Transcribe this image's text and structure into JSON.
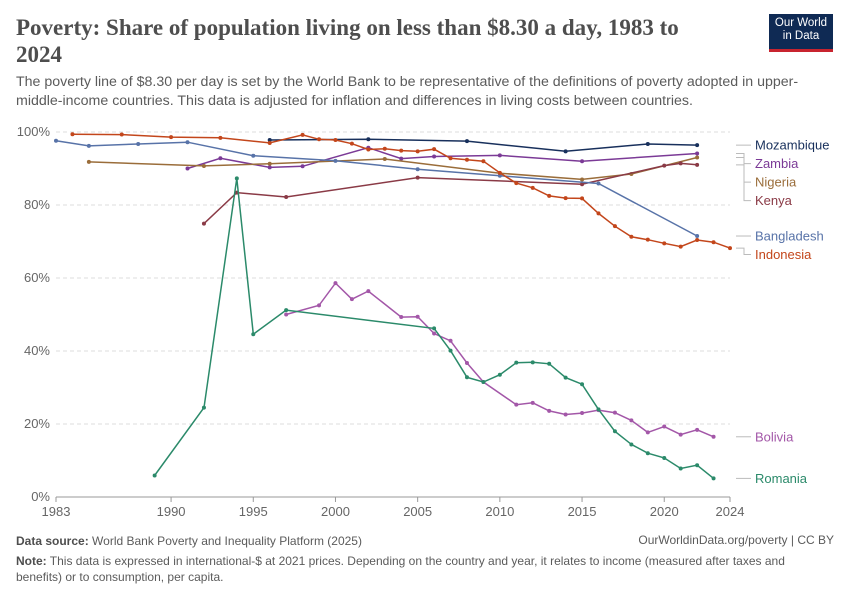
{
  "header": {
    "title": "Poverty: Share of population living on less than $8.30 a day, 1983 to 2024",
    "subtitle": "The poverty line of $8.30 per day is set by the World Bank to be representative of the definitions of poverty adopted in upper-middle-income countries. This data is adjusted for inflation and differences in living costs between countries.",
    "logo_line1": "Our World",
    "logo_line2": "in Data",
    "logo_color": "#0f2a54",
    "logo_accent": "#c8242f"
  },
  "footer": {
    "source_label": "Data source:",
    "source_text": "World Bank Poverty and Inequality Platform (2025)",
    "url_text": "OurWorldinData.org/poverty | CC BY",
    "note_label": "Note:",
    "note_text": "This data is expressed in international-$ at 2021 prices. Depending on the country and year, it relates to income (measured after taxes and benefits) or to consumption, per capita."
  },
  "chart_data": {
    "type": "line",
    "xlim": [
      1983,
      2024
    ],
    "ylim": [
      0,
      100
    ],
    "x_ticks": [
      1983,
      1990,
      1995,
      2000,
      2005,
      2010,
      2015,
      2020,
      2024
    ],
    "y_ticks": [
      0,
      20,
      40,
      60,
      80,
      100
    ],
    "y_tick_labels": [
      "0%",
      "20%",
      "40%",
      "60%",
      "80%",
      "100%"
    ],
    "grid": "horizontal-dashed",
    "legend": "right-end-labels",
    "series": [
      {
        "name": "Mozambique",
        "color": "#18305c",
        "points": [
          [
            1996,
            97.8
          ],
          [
            2002,
            98.0
          ],
          [
            2008,
            97.5
          ],
          [
            2014,
            94.7
          ],
          [
            2019,
            96.7
          ],
          [
            2022,
            96.4
          ]
        ]
      },
      {
        "name": "Zambia",
        "color": "#7b3a96",
        "points": [
          [
            1991,
            90.0
          ],
          [
            1993,
            92.8
          ],
          [
            1996,
            90.3
          ],
          [
            1998,
            90.6
          ],
          [
            2002,
            95.7
          ],
          [
            2004,
            92.7
          ],
          [
            2006,
            93.3
          ],
          [
            2010,
            93.6
          ],
          [
            2015,
            92.0
          ],
          [
            2022,
            94.1
          ]
        ]
      },
      {
        "name": "Nigeria",
        "color": "#9a6d3a",
        "points": [
          [
            1985,
            91.8
          ],
          [
            1992,
            90.7
          ],
          [
            1996,
            91.3
          ],
          [
            2003,
            92.6
          ],
          [
            2010,
            88.7
          ],
          [
            2015,
            87.0
          ],
          [
            2018,
            88.5
          ],
          [
            2022,
            93.0
          ]
        ]
      },
      {
        "name": "Kenya",
        "color": "#8a3a46",
        "points": [
          [
            1992,
            74.9
          ],
          [
            1994,
            83.4
          ],
          [
            1997,
            82.2
          ],
          [
            2005,
            87.5
          ],
          [
            2015,
            85.7
          ],
          [
            2020,
            90.8
          ],
          [
            2021,
            91.4
          ],
          [
            2022,
            91.0
          ]
        ]
      },
      {
        "name": "Bangladesh",
        "color": "#5873a8",
        "points": [
          [
            1983,
            97.6
          ],
          [
            1985,
            96.2
          ],
          [
            1988,
            96.7
          ],
          [
            1991,
            97.2
          ],
          [
            1995,
            93.5
          ],
          [
            2000,
            92.1
          ],
          [
            2005,
            89.8
          ],
          [
            2010,
            88.0
          ],
          [
            2016,
            85.9
          ],
          [
            2022,
            71.5
          ]
        ]
      },
      {
        "name": "Indonesia",
        "color": "#c3461b",
        "points": [
          [
            1984,
            99.4
          ],
          [
            1987,
            99.3
          ],
          [
            1990,
            98.6
          ],
          [
            1993,
            98.4
          ],
          [
            1996,
            97.0
          ],
          [
            1998,
            99.2
          ],
          [
            1999,
            98.0
          ],
          [
            2000,
            97.8
          ],
          [
            2001,
            96.8
          ],
          [
            2002,
            95.2
          ],
          [
            2003,
            95.4
          ],
          [
            2004,
            94.9
          ],
          [
            2005,
            94.7
          ],
          [
            2006,
            95.3
          ],
          [
            2007,
            92.8
          ],
          [
            2008,
            92.4
          ],
          [
            2009,
            92.0
          ],
          [
            2010,
            88.8
          ],
          [
            2011,
            86.0
          ],
          [
            2012,
            84.7
          ],
          [
            2013,
            82.5
          ],
          [
            2014,
            81.9
          ],
          [
            2015,
            81.8
          ],
          [
            2016,
            77.7
          ],
          [
            2017,
            74.2
          ],
          [
            2018,
            71.3
          ],
          [
            2019,
            70.5
          ],
          [
            2020,
            69.5
          ],
          [
            2021,
            68.6
          ],
          [
            2022,
            70.4
          ],
          [
            2023,
            69.8
          ],
          [
            2024,
            68.2
          ]
        ]
      },
      {
        "name": "Bolivia",
        "color": "#a357a8",
        "points": [
          [
            1997,
            50.0
          ],
          [
            1999,
            52.5
          ],
          [
            2000,
            58.6
          ],
          [
            2001,
            54.2
          ],
          [
            2002,
            56.4
          ],
          [
            2004,
            49.3
          ],
          [
            2005,
            49.4
          ],
          [
            2006,
            44.8
          ],
          [
            2007,
            42.8
          ],
          [
            2008,
            36.7
          ],
          [
            2009,
            31.5
          ],
          [
            2011,
            25.3
          ],
          [
            2012,
            25.8
          ],
          [
            2013,
            23.6
          ],
          [
            2014,
            22.6
          ],
          [
            2015,
            23.0
          ],
          [
            2016,
            23.8
          ],
          [
            2017,
            23.1
          ],
          [
            2018,
            21.0
          ],
          [
            2019,
            17.7
          ],
          [
            2020,
            19.3
          ],
          [
            2021,
            17.1
          ],
          [
            2022,
            18.4
          ],
          [
            2023,
            16.5
          ]
        ]
      },
      {
        "name": "Romania",
        "color": "#2b8a6a",
        "points": [
          [
            1989,
            5.9
          ],
          [
            1992,
            24.5
          ],
          [
            1994,
            87.3
          ],
          [
            1995,
            44.6
          ],
          [
            1997,
            51.2
          ],
          [
            2006,
            46.2
          ],
          [
            2007,
            40.1
          ],
          [
            2008,
            32.8
          ],
          [
            2009,
            31.5
          ],
          [
            2010,
            33.5
          ],
          [
            2011,
            36.8
          ],
          [
            2012,
            36.9
          ],
          [
            2013,
            36.5
          ],
          [
            2014,
            32.7
          ],
          [
            2015,
            30.9
          ],
          [
            2016,
            24.0
          ],
          [
            2017,
            18.0
          ],
          [
            2018,
            14.4
          ],
          [
            2019,
            12.0
          ],
          [
            2020,
            10.7
          ],
          [
            2021,
            7.8
          ],
          [
            2022,
            8.7
          ],
          [
            2023,
            5.1
          ]
        ]
      }
    ]
  }
}
